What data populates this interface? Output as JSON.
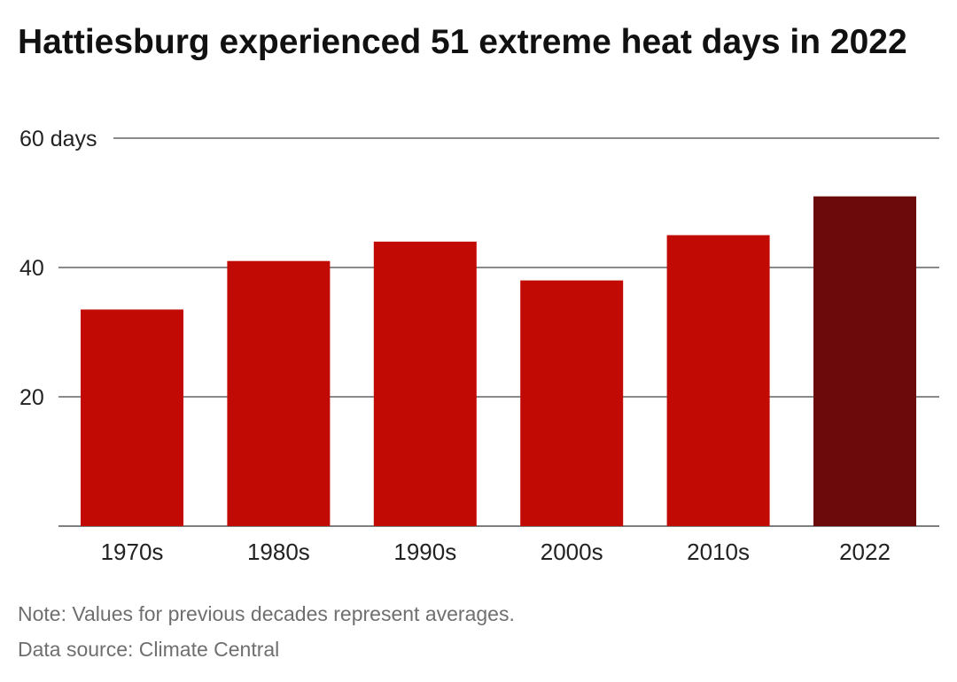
{
  "chart_data": {
    "type": "bar",
    "title": "Hattiesburg experienced 51 extreme heat days in 2022",
    "categories": [
      "1970s",
      "1980s",
      "1990s",
      "2000s",
      "2010s",
      "2022"
    ],
    "series": [
      {
        "values": [
          33.5,
          41,
          44,
          38,
          45,
          51
        ]
      }
    ],
    "ylim": [
      0,
      60
    ],
    "yticks": [
      {
        "value": 60,
        "label": "60 days"
      },
      {
        "value": 40,
        "label": "40"
      },
      {
        "value": 20,
        "label": "20"
      }
    ],
    "grid": true,
    "colors": {
      "bar": "#c20a05",
      "highlight_bar": "#6b090b",
      "gridline": "#444444"
    },
    "highlight_index": 5
  },
  "footer": {
    "note": "Note: Values for previous decades represent averages.",
    "source": "Data source: Climate Central"
  }
}
